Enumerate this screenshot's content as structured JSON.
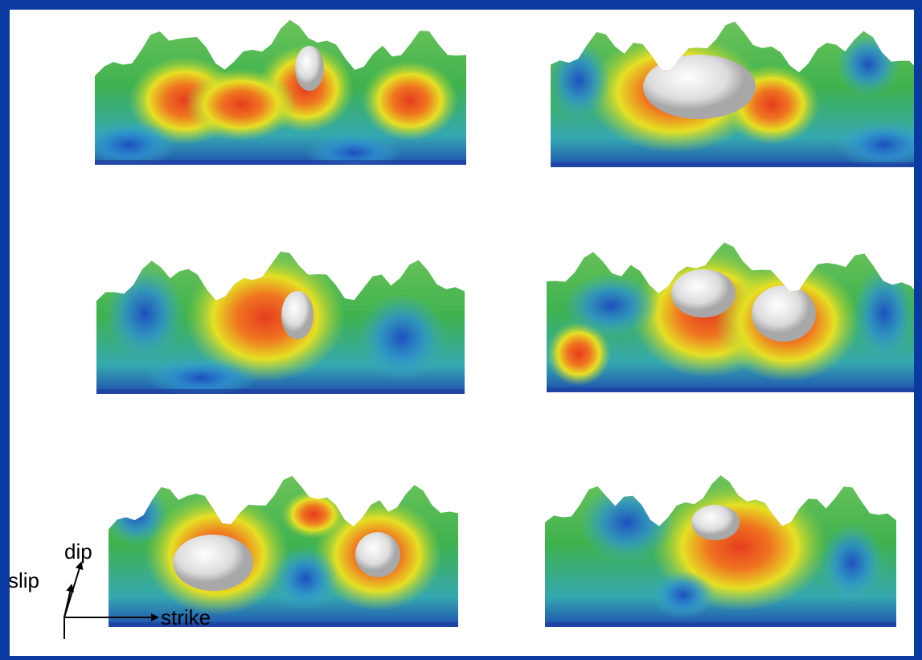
{
  "labels": {
    "dip": "dip",
    "slip": "slip",
    "strike": "strike"
  }
}
